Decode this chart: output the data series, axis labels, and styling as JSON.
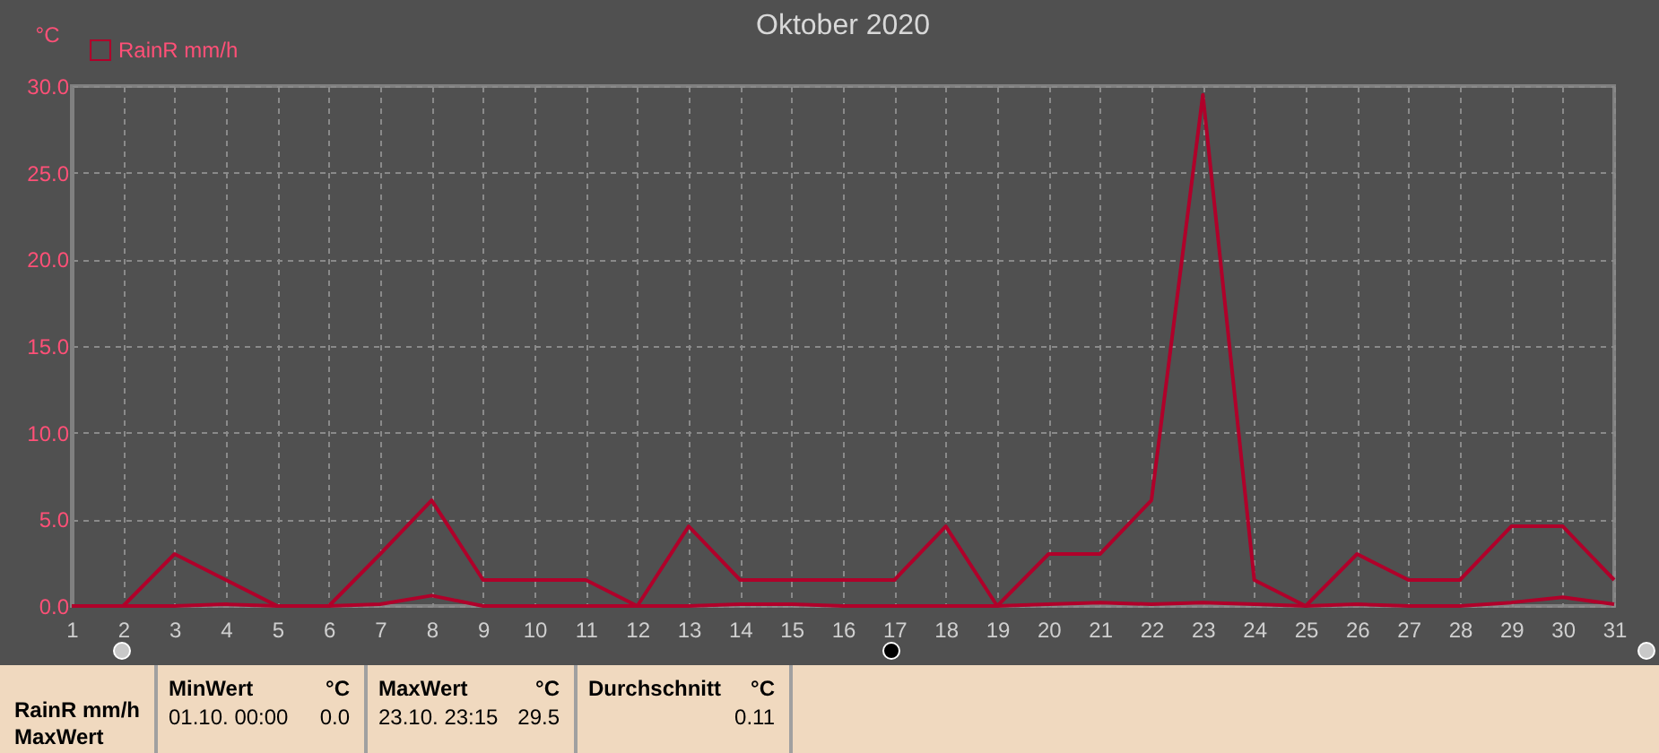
{
  "chart_data": {
    "type": "line",
    "title": "Oktober 2020",
    "ylabel": "°C",
    "x": [
      1,
      2,
      3,
      4,
      5,
      6,
      7,
      8,
      9,
      10,
      11,
      12,
      13,
      14,
      15,
      16,
      17,
      18,
      19,
      20,
      21,
      22,
      23,
      24,
      25,
      26,
      27,
      28,
      29,
      30,
      31
    ],
    "series": [
      {
        "name": "RainR mm/h",
        "color": "#b0002a",
        "values": [
          0,
          0,
          3.0,
          1.5,
          0,
          0,
          3.0,
          6.1,
          1.5,
          1.5,
          1.5,
          0,
          4.6,
          1.5,
          1.5,
          1.5,
          1.5,
          4.6,
          0,
          3.0,
          3.0,
          6.1,
          29.5,
          1.5,
          0,
          3.0,
          1.5,
          1.5,
          4.6,
          4.6,
          1.5
        ]
      },
      {
        "color": "#b0002a",
        "values": [
          0,
          0,
          0,
          0.1,
          0,
          0,
          0.1,
          0.6,
          0,
          0,
          0,
          0,
          0,
          0.1,
          0.1,
          0,
          0,
          0,
          0,
          0.1,
          0.2,
          0.1,
          0.2,
          0.1,
          0,
          0.1,
          0,
          0,
          0.2,
          0.5,
          0.1
        ]
      }
    ],
    "xlim": [
      1,
      31
    ],
    "xticks": [
      1,
      2,
      3,
      4,
      5,
      6,
      7,
      8,
      9,
      10,
      11,
      12,
      13,
      14,
      15,
      16,
      17,
      18,
      19,
      20,
      21,
      22,
      23,
      24,
      25,
      26,
      27,
      28,
      29,
      30,
      31
    ],
    "ylim": [
      0,
      30
    ],
    "yticks": [
      {
        "value": 0,
        "label": "0.0"
      },
      {
        "value": 5,
        "label": "5.0"
      },
      {
        "value": 10,
        "label": "10.0"
      },
      {
        "value": 15,
        "label": "15.0"
      },
      {
        "value": 20,
        "label": "20.0"
      },
      {
        "value": 25,
        "label": "25.0"
      },
      {
        "value": 30,
        "label": "30.0"
      }
    ],
    "grid": true,
    "legend": "top left",
    "marker": "none",
    "line_style": "solid",
    "annotations": [
      "RainR mm/h",
      "MaxWert",
      "MinWert",
      "°C",
      "01.10.  00:00",
      "0.0",
      "MaxWert",
      "°C",
      "23.10.  23:15",
      "29.5",
      "Durchschnitt",
      "°C",
      "0.11"
    ]
  }
}
